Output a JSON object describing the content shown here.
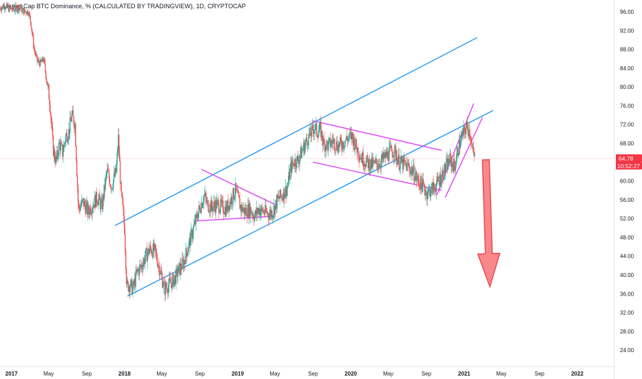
{
  "header": {
    "title": "Market Cap BTC Dominance, % (CALCULATED BY TRADINGVIEW), 1D, CRYPTOCAP"
  },
  "price_badge": {
    "value": "64.78",
    "countdown": "10:52:27"
  },
  "colors": {
    "up": "#26a69a",
    "down": "#ef5350",
    "channel": "#2196f3",
    "pattern": "#e040fb",
    "arrow_fill": "#f77b7f",
    "arrow_stroke": "#e84a50",
    "badge": "#f23645",
    "price_line": "#f7a3a6"
  },
  "chart_data": {
    "type": "candlestick",
    "title": "Market Cap BTC Dominance, % (CALCULATED BY TRADINGVIEW), 1D, CRYPTOCAP",
    "ylabel": "",
    "xlabel": "",
    "y_ticks": [
      24,
      28,
      32,
      36,
      40,
      44,
      48,
      52,
      56,
      60,
      64,
      68,
      72,
      76,
      80,
      84,
      88,
      92,
      96
    ],
    "y_tick_labels": [
      "24.00",
      "28.00",
      "32.00",
      "36.00",
      "40.00",
      "44.00",
      "48.00",
      "52.00",
      "56.00",
      "60.00",
      "64.00",
      "68.00",
      "72.00",
      "76.00",
      "80.00",
      "84.00",
      "88.00",
      "92.00",
      "96.00"
    ],
    "ylim": [
      20.5,
      98.5
    ],
    "xlim": [
      "2016-11-25",
      "2022-05-01"
    ],
    "x_ticks": [
      {
        "label": "2017",
        "date": "2017-01-01"
      },
      {
        "label": "May",
        "date": "2017-05-01"
      },
      {
        "label": "Sep",
        "date": "2017-09-01"
      },
      {
        "label": "2018",
        "date": "2018-01-01"
      },
      {
        "label": "May",
        "date": "2018-05-01"
      },
      {
        "label": "Sep",
        "date": "2018-09-01"
      },
      {
        "label": "2019",
        "date": "2019-01-01"
      },
      {
        "label": "May",
        "date": "2019-05-01"
      },
      {
        "label": "Sep",
        "date": "2019-09-01"
      },
      {
        "label": "2020",
        "date": "2020-01-01"
      },
      {
        "label": "May",
        "date": "2020-05-01"
      },
      {
        "label": "Sep",
        "date": "2020-09-01"
      },
      {
        "label": "2021",
        "date": "2021-01-01"
      },
      {
        "label": "May",
        "date": "2021-05-01"
      },
      {
        "label": "Sep",
        "date": "2021-09-01"
      },
      {
        "label": "2022",
        "date": "2022-01-01"
      }
    ],
    "series": [
      {
        "points": [
          [
            "2016-11-25",
            96.8
          ],
          [
            "2016-12-10",
            97.3
          ],
          [
            "2016-12-25",
            96.6
          ],
          [
            "2017-01-10",
            96.5
          ],
          [
            "2017-01-25",
            97.0
          ],
          [
            "2017-02-10",
            96.1
          ],
          [
            "2017-02-25",
            96.0
          ],
          [
            "2017-03-05",
            93.5
          ],
          [
            "2017-03-15",
            88.0
          ],
          [
            "2017-03-25",
            85.5
          ],
          [
            "2017-04-05",
            85.0
          ],
          [
            "2017-04-15",
            86.0
          ],
          [
            "2017-04-25",
            81.0
          ],
          [
            "2017-05-05",
            77.0
          ],
          [
            "2017-05-15",
            67.0
          ],
          [
            "2017-05-25",
            64.0
          ],
          [
            "2017-06-05",
            68.0
          ],
          [
            "2017-06-15",
            66.0
          ],
          [
            "2017-06-25",
            69.5
          ],
          [
            "2017-07-05",
            70.5
          ],
          [
            "2017-07-15",
            74.0
          ],
          [
            "2017-07-25",
            72.0
          ],
          [
            "2017-08-05",
            54.0
          ],
          [
            "2017-08-20",
            55.5
          ],
          [
            "2017-09-05",
            53.5
          ],
          [
            "2017-09-20",
            55.0
          ],
          [
            "2017-10-05",
            56.5
          ],
          [
            "2017-10-20",
            54.5
          ],
          [
            "2017-11-05",
            62.0
          ],
          [
            "2017-11-20",
            59.0
          ],
          [
            "2017-12-05",
            62.0
          ],
          [
            "2017-12-12",
            69.0
          ],
          [
            "2017-12-20",
            58.0
          ],
          [
            "2018-01-01",
            50.0
          ],
          [
            "2018-01-08",
            37.5
          ],
          [
            "2018-01-18",
            38.0
          ],
          [
            "2018-01-28",
            37.0
          ],
          [
            "2018-02-10",
            40.5
          ],
          [
            "2018-02-25",
            42.0
          ],
          [
            "2018-03-10",
            44.0
          ],
          [
            "2018-03-25",
            45.5
          ],
          [
            "2018-04-10",
            45.0
          ],
          [
            "2018-04-25",
            41.0
          ],
          [
            "2018-05-10",
            37.0
          ],
          [
            "2018-05-25",
            38.0
          ],
          [
            "2018-06-10",
            39.0
          ],
          [
            "2018-06-25",
            41.0
          ],
          [
            "2018-07-10",
            42.5
          ],
          [
            "2018-07-25",
            46.0
          ],
          [
            "2018-08-10",
            49.5
          ],
          [
            "2018-08-25",
            53.0
          ],
          [
            "2018-09-05",
            55.0
          ],
          [
            "2018-09-15",
            57.0
          ],
          [
            "2018-09-25",
            55.0
          ],
          [
            "2018-10-10",
            54.5
          ],
          [
            "2018-10-25",
            55.0
          ],
          [
            "2018-11-10",
            54.5
          ],
          [
            "2018-11-25",
            54.0
          ],
          [
            "2018-12-10",
            56.0
          ],
          [
            "2018-12-25",
            58.0
          ],
          [
            "2019-01-10",
            54.5
          ],
          [
            "2019-01-25",
            53.5
          ],
          [
            "2019-02-10",
            54.0
          ],
          [
            "2019-02-25",
            52.5
          ],
          [
            "2019-03-10",
            54.0
          ],
          [
            "2019-03-25",
            53.5
          ],
          [
            "2019-04-10",
            53.0
          ],
          [
            "2019-04-25",
            53.5
          ],
          [
            "2019-05-10",
            56.0
          ],
          [
            "2019-05-25",
            57.0
          ],
          [
            "2019-06-10",
            58.5
          ],
          [
            "2019-06-20",
            62.5
          ],
          [
            "2019-07-01",
            64.0
          ],
          [
            "2019-07-15",
            64.5
          ],
          [
            "2019-08-01",
            67.0
          ],
          [
            "2019-08-15",
            69.0
          ],
          [
            "2019-08-25",
            70.0
          ],
          [
            "2019-09-05",
            71.5
          ],
          [
            "2019-09-15",
            70.5
          ],
          [
            "2019-09-25",
            71.0
          ],
          [
            "2019-10-05",
            68.0
          ],
          [
            "2019-10-20",
            67.5
          ],
          [
            "2019-11-05",
            68.5
          ],
          [
            "2019-11-20",
            67.5
          ],
          [
            "2019-12-05",
            68.0
          ],
          [
            "2019-12-20",
            69.0
          ],
          [
            "2020-01-05",
            69.5
          ],
          [
            "2020-01-20",
            67.0
          ],
          [
            "2020-02-05",
            65.0
          ],
          [
            "2020-02-20",
            64.0
          ],
          [
            "2020-03-05",
            63.5
          ],
          [
            "2020-03-20",
            63.5
          ],
          [
            "2020-04-05",
            64.0
          ],
          [
            "2020-04-20",
            65.0
          ],
          [
            "2020-05-05",
            66.0
          ],
          [
            "2020-05-20",
            66.5
          ],
          [
            "2020-06-05",
            64.0
          ],
          [
            "2020-06-20",
            63.5
          ],
          [
            "2020-07-05",
            63.0
          ],
          [
            "2020-07-20",
            62.0
          ],
          [
            "2020-08-05",
            60.0
          ],
          [
            "2020-08-20",
            59.0
          ],
          [
            "2020-09-01",
            57.5
          ],
          [
            "2020-09-15",
            58.0
          ],
          [
            "2020-10-01",
            59.0
          ],
          [
            "2020-10-15",
            60.5
          ],
          [
            "2020-11-01",
            62.5
          ],
          [
            "2020-11-15",
            64.5
          ],
          [
            "2020-12-01",
            63.0
          ],
          [
            "2020-12-15",
            67.5
          ],
          [
            "2021-01-01",
            70.5
          ],
          [
            "2021-01-10",
            71.5
          ],
          [
            "2021-01-20",
            70.5
          ],
          [
            "2021-01-28",
            66.0
          ],
          [
            "2021-02-05",
            64.8
          ]
        ]
      }
    ],
    "drawings": [
      {
        "kind": "trendline",
        "style": "channel",
        "points": [
          [
            "2017-12-01",
            50.5
          ],
          [
            "2021-02-12",
            90.5
          ]
        ]
      },
      {
        "kind": "trendline",
        "style": "channel",
        "points": [
          [
            "2018-01-10",
            35.5
          ],
          [
            "2021-04-05",
            75.0
          ]
        ]
      },
      {
        "kind": "trendline",
        "style": "pattern",
        "points": [
          [
            "2018-09-05",
            62.5
          ],
          [
            "2019-05-01",
            55.0
          ]
        ]
      },
      {
        "kind": "trendline",
        "style": "pattern",
        "points": [
          [
            "2018-08-20",
            51.5
          ],
          [
            "2019-05-01",
            52.5
          ]
        ]
      },
      {
        "kind": "trendline",
        "style": "pattern",
        "points": [
          [
            "2019-09-01",
            72.8
          ],
          [
            "2020-10-20",
            66.5
          ]
        ]
      },
      {
        "kind": "trendline",
        "style": "pattern",
        "points": [
          [
            "2019-09-01",
            64.0
          ],
          [
            "2020-10-20",
            58.0
          ]
        ]
      },
      {
        "kind": "trendline",
        "style": "pattern",
        "points": [
          [
            "2020-10-05",
            57.0
          ],
          [
            "2021-02-01",
            76.5
          ]
        ]
      },
      {
        "kind": "trendline",
        "style": "pattern",
        "points": [
          [
            "2020-11-01",
            56.5
          ],
          [
            "2021-03-01",
            73.5
          ]
        ]
      },
      {
        "kind": "arrow",
        "direction": "down",
        "from": [
          "2021-03-12",
          64.5
        ],
        "to": [
          "2021-03-25",
          37.5
        ]
      }
    ]
  }
}
